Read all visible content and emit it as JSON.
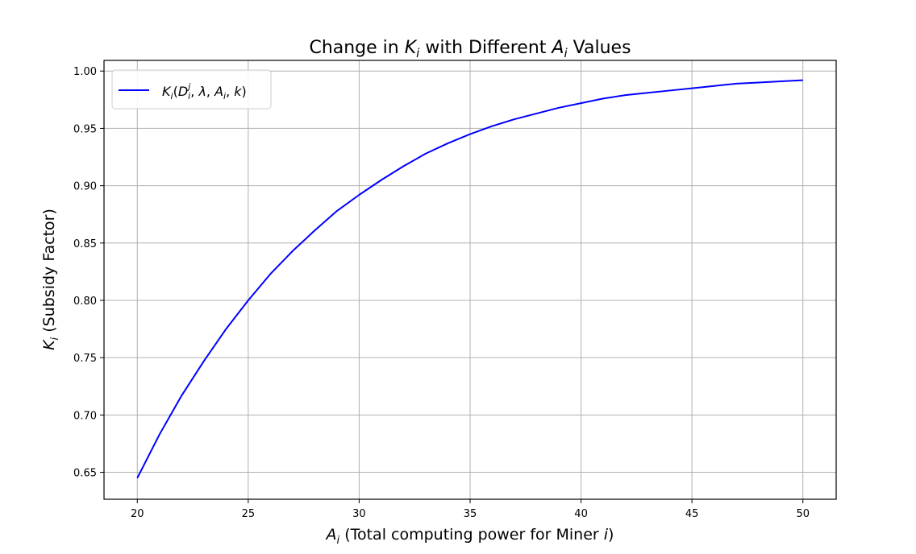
{
  "chart_data": {
    "type": "line",
    "title": "Change in K_i with Different A_i Values",
    "title_parts": {
      "pre": "Change in ",
      "sym": "K",
      "sub": "i",
      "post": " with Different ",
      "sym2": "A",
      "sub2": "i",
      "post2": " Values"
    },
    "xlabel": "A_i (Total computing power for Miner i)",
    "xlabel_parts": {
      "sym": "A",
      "sub": "i",
      "text": " (Total computing power for Miner ",
      "var": "i",
      "close": ")"
    },
    "ylabel": "K_i (Subsidy Factor)",
    "ylabel_parts": {
      "sym": "K",
      "sub": "i",
      "text": " (Subsidy Factor)"
    },
    "xlim": [
      18.5,
      51.5
    ],
    "ylim": [
      0.6265,
      1.0093
    ],
    "xticks": [
      20,
      25,
      30,
      35,
      40,
      45,
      50
    ],
    "xtick_labels": [
      "20",
      "25",
      "30",
      "35",
      "40",
      "45",
      "50"
    ],
    "yticks": [
      0.65,
      0.7,
      0.75,
      0.8,
      0.85,
      0.9,
      0.95,
      1.0
    ],
    "ytick_labels": [
      "0.65",
      "0.70",
      "0.75",
      "0.80",
      "0.85",
      "0.90",
      "0.95",
      "1.00"
    ],
    "grid": true,
    "legend_position": "top-left",
    "series": [
      {
        "name": "K_i(D_i^j, λ, A_i, k)",
        "color": "#0000ff",
        "x": [
          20,
          21,
          22,
          23,
          24,
          25,
          26,
          27,
          28,
          29,
          30,
          31,
          32,
          33,
          34,
          35,
          36,
          37,
          38,
          39,
          40,
          41,
          42,
          43,
          44,
          45,
          46,
          47,
          48,
          49,
          50
        ],
        "y": [
          0.645,
          0.683,
          0.717,
          0.747,
          0.775,
          0.8,
          0.823,
          0.843,
          0.861,
          0.878,
          0.892,
          0.905,
          0.917,
          0.928,
          0.937,
          0.945,
          0.952,
          0.958,
          0.963,
          0.968,
          0.972,
          0.976,
          0.979,
          0.981,
          0.983,
          0.985,
          0.987,
          0.989,
          0.99,
          0.991,
          0.992
        ]
      }
    ]
  }
}
